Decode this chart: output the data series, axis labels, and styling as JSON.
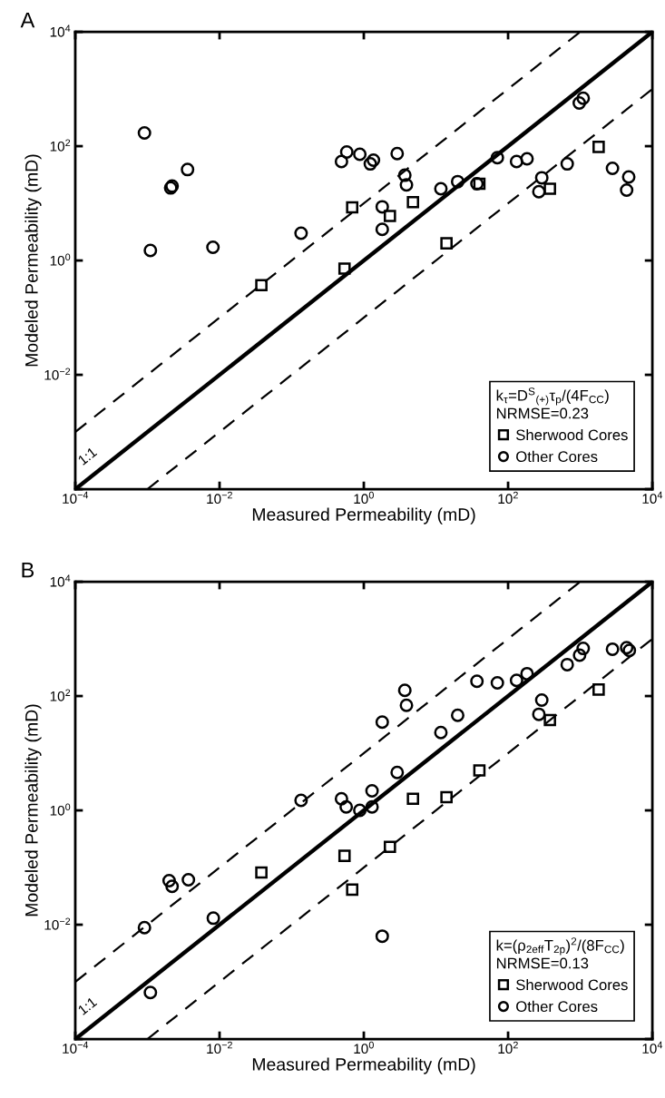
{
  "chart_data": [
    {
      "type": "scatter",
      "title": "A",
      "xlabel": "Measured Permeability (mD)",
      "ylabel": "Modeled Permeability (mD)",
      "log": "xy",
      "xlim": [
        0.0001,
        10000
      ],
      "ylim": [
        0.0001,
        10000
      ],
      "xticks": [
        {
          "value": 0.0001,
          "label": "10$^{−4}$"
        },
        {
          "value": 0.01,
          "label": "10$^{−2}$"
        },
        {
          "value": 1,
          "label": "10$^{0}$"
        },
        {
          "value": 100,
          "label": "10$^{2}$"
        },
        {
          "value": 10000,
          "label": "10$^{4}$"
        }
      ],
      "yticks": [
        {
          "value": 0.0001,
          "label": null
        },
        {
          "value": 0.01,
          "label": "10$^{−2}$"
        },
        {
          "value": 1,
          "label": "10$^{0}$"
        },
        {
          "value": 100,
          "label": "10$^{2}$"
        },
        {
          "value": 10000,
          "label": "10$^{4}$"
        }
      ],
      "legend": "bottom right",
      "legend_title": "k$_{τ}$=D$^{S}$$_{(+)}$τ$_{p}$/(4F$_{CC}$)\nNRMSE=0.23",
      "grid": false,
      "annotations": [
        "1:1"
      ],
      "series": [
        {
          "type": "line",
          "color": "#000000",
          "line_style": "solid",
          "x": [
            0.0001,
            10000
          ],
          "values": [
            0.0001,
            10000
          ]
        },
        {
          "type": "line",
          "color": "#000000",
          "line_style": "dashed",
          "x": [
            0.0001,
            1000
          ],
          "values": [
            0.001,
            10000
          ]
        },
        {
          "type": "line",
          "color": "#000000",
          "line_style": "dashed",
          "x": [
            0.001,
            10000
          ],
          "values": [
            0.0001,
            1000
          ]
        },
        {
          "name": "Sherwood Cores",
          "marker": "square",
          "color": "#000000",
          "x": [
            0.038,
            0.54,
            0.69,
            2.3,
            4.8,
            40,
            14,
            380,
            1800
          ],
          "values": [
            0.37,
            0.72,
            8.5,
            6.0,
            10.5,
            22,
            2.0,
            18,
            97
          ]
        },
        {
          "name": "Other Cores",
          "marker": "circle",
          "color": "#000000",
          "x": [
            0.00091,
            0.0011,
            0.0036,
            0.0021,
            0.0022,
            0.0081,
            0.135,
            0.58,
            0.49,
            0.88,
            1.36,
            1.23,
            2.9,
            3.7,
            3.9,
            1.8,
            1.8,
            11.7,
            20,
            37,
            71,
            131,
            183,
            293,
            267,
            660,
            970,
            1100,
            2800,
            4700,
            4400
          ],
          "values": [
            170,
            1.5,
            39,
            18.6,
            20,
            1.7,
            3.0,
            79,
            54,
            72,
            57,
            49,
            74,
            31,
            21,
            8.7,
            3.5,
            18,
            24,
            22,
            63,
            54,
            60,
            28,
            16,
            49,
            570,
            690,
            41,
            29,
            17
          ]
        }
      ]
    },
    {
      "type": "scatter",
      "title": "B",
      "xlabel": "Measured Permeability (mD)",
      "ylabel": "Modeled Permeability (mD)",
      "log": "xy",
      "xlim": [
        0.0001,
        10000
      ],
      "ylim": [
        0.0001,
        10000
      ],
      "xticks": [
        {
          "value": 0.0001,
          "label": "10$^{−4}$"
        },
        {
          "value": 0.01,
          "label": "10$^{−2}$"
        },
        {
          "value": 1,
          "label": "10$^{0}$"
        },
        {
          "value": 100,
          "label": "10$^{2}$"
        },
        {
          "value": 10000,
          "label": "10$^{4}$"
        }
      ],
      "yticks": [
        {
          "value": 0.0001,
          "label": null
        },
        {
          "value": 0.01,
          "label": "10$^{−2}$"
        },
        {
          "value": 1,
          "label": "10$^{0}$"
        },
        {
          "value": 100,
          "label": "10$^{2}$"
        },
        {
          "value": 10000,
          "label": "10$^{4}$"
        }
      ],
      "legend": "bottom right",
      "legend_title": "k=(ρ$_{2eff}$T$_{2p}$)$^{2}$/(8F$_{CC}$)\nNRMSE=0.13",
      "grid": false,
      "annotations": [
        "1:1"
      ],
      "series": [
        {
          "type": "line",
          "color": "#000000",
          "line_style": "solid",
          "x": [
            0.0001,
            10000
          ],
          "values": [
            0.0001,
            10000
          ]
        },
        {
          "type": "line",
          "color": "#000000",
          "line_style": "dashed",
          "x": [
            0.0001,
            1000
          ],
          "values": [
            0.001,
            10000
          ]
        },
        {
          "type": "line",
          "color": "#000000",
          "line_style": "dashed",
          "x": [
            0.001,
            10000
          ],
          "values": [
            0.0001,
            1000
          ]
        },
        {
          "name": "Sherwood Cores",
          "marker": "square",
          "color": "#000000",
          "x": [
            0.038,
            0.54,
            0.69,
            2.3,
            4.8,
            14,
            40,
            380,
            1800
          ],
          "values": [
            0.082,
            0.16,
            0.041,
            0.23,
            1.6,
            1.7,
            5.0,
            38,
            130
          ]
        },
        {
          "name": "Other Cores",
          "marker": "circle",
          "color": "#000000",
          "x": [
            0.00091,
            0.0011,
            0.002,
            0.0022,
            0.0037,
            0.0082,
            0.135,
            0.49,
            0.57,
            0.88,
            1.3,
            1.3,
            1.8,
            1.8,
            2.9,
            3.7,
            3.9,
            11.7,
            20,
            37,
            71,
            131,
            183,
            267,
            293,
            660,
            980,
            1100,
            2800,
            4400,
            4800
          ],
          "values": [
            0.0089,
            0.00065,
            0.059,
            0.047,
            0.061,
            0.013,
            1.5,
            1.6,
            1.15,
            1.0,
            1.15,
            2.2,
            35,
            0.0063,
            4.6,
            126,
            69,
            23,
            46,
            181,
            170,
            188,
            246,
            48,
            85,
            355,
            520,
            680,
            660,
            700,
            630
          ]
        }
      ]
    }
  ]
}
